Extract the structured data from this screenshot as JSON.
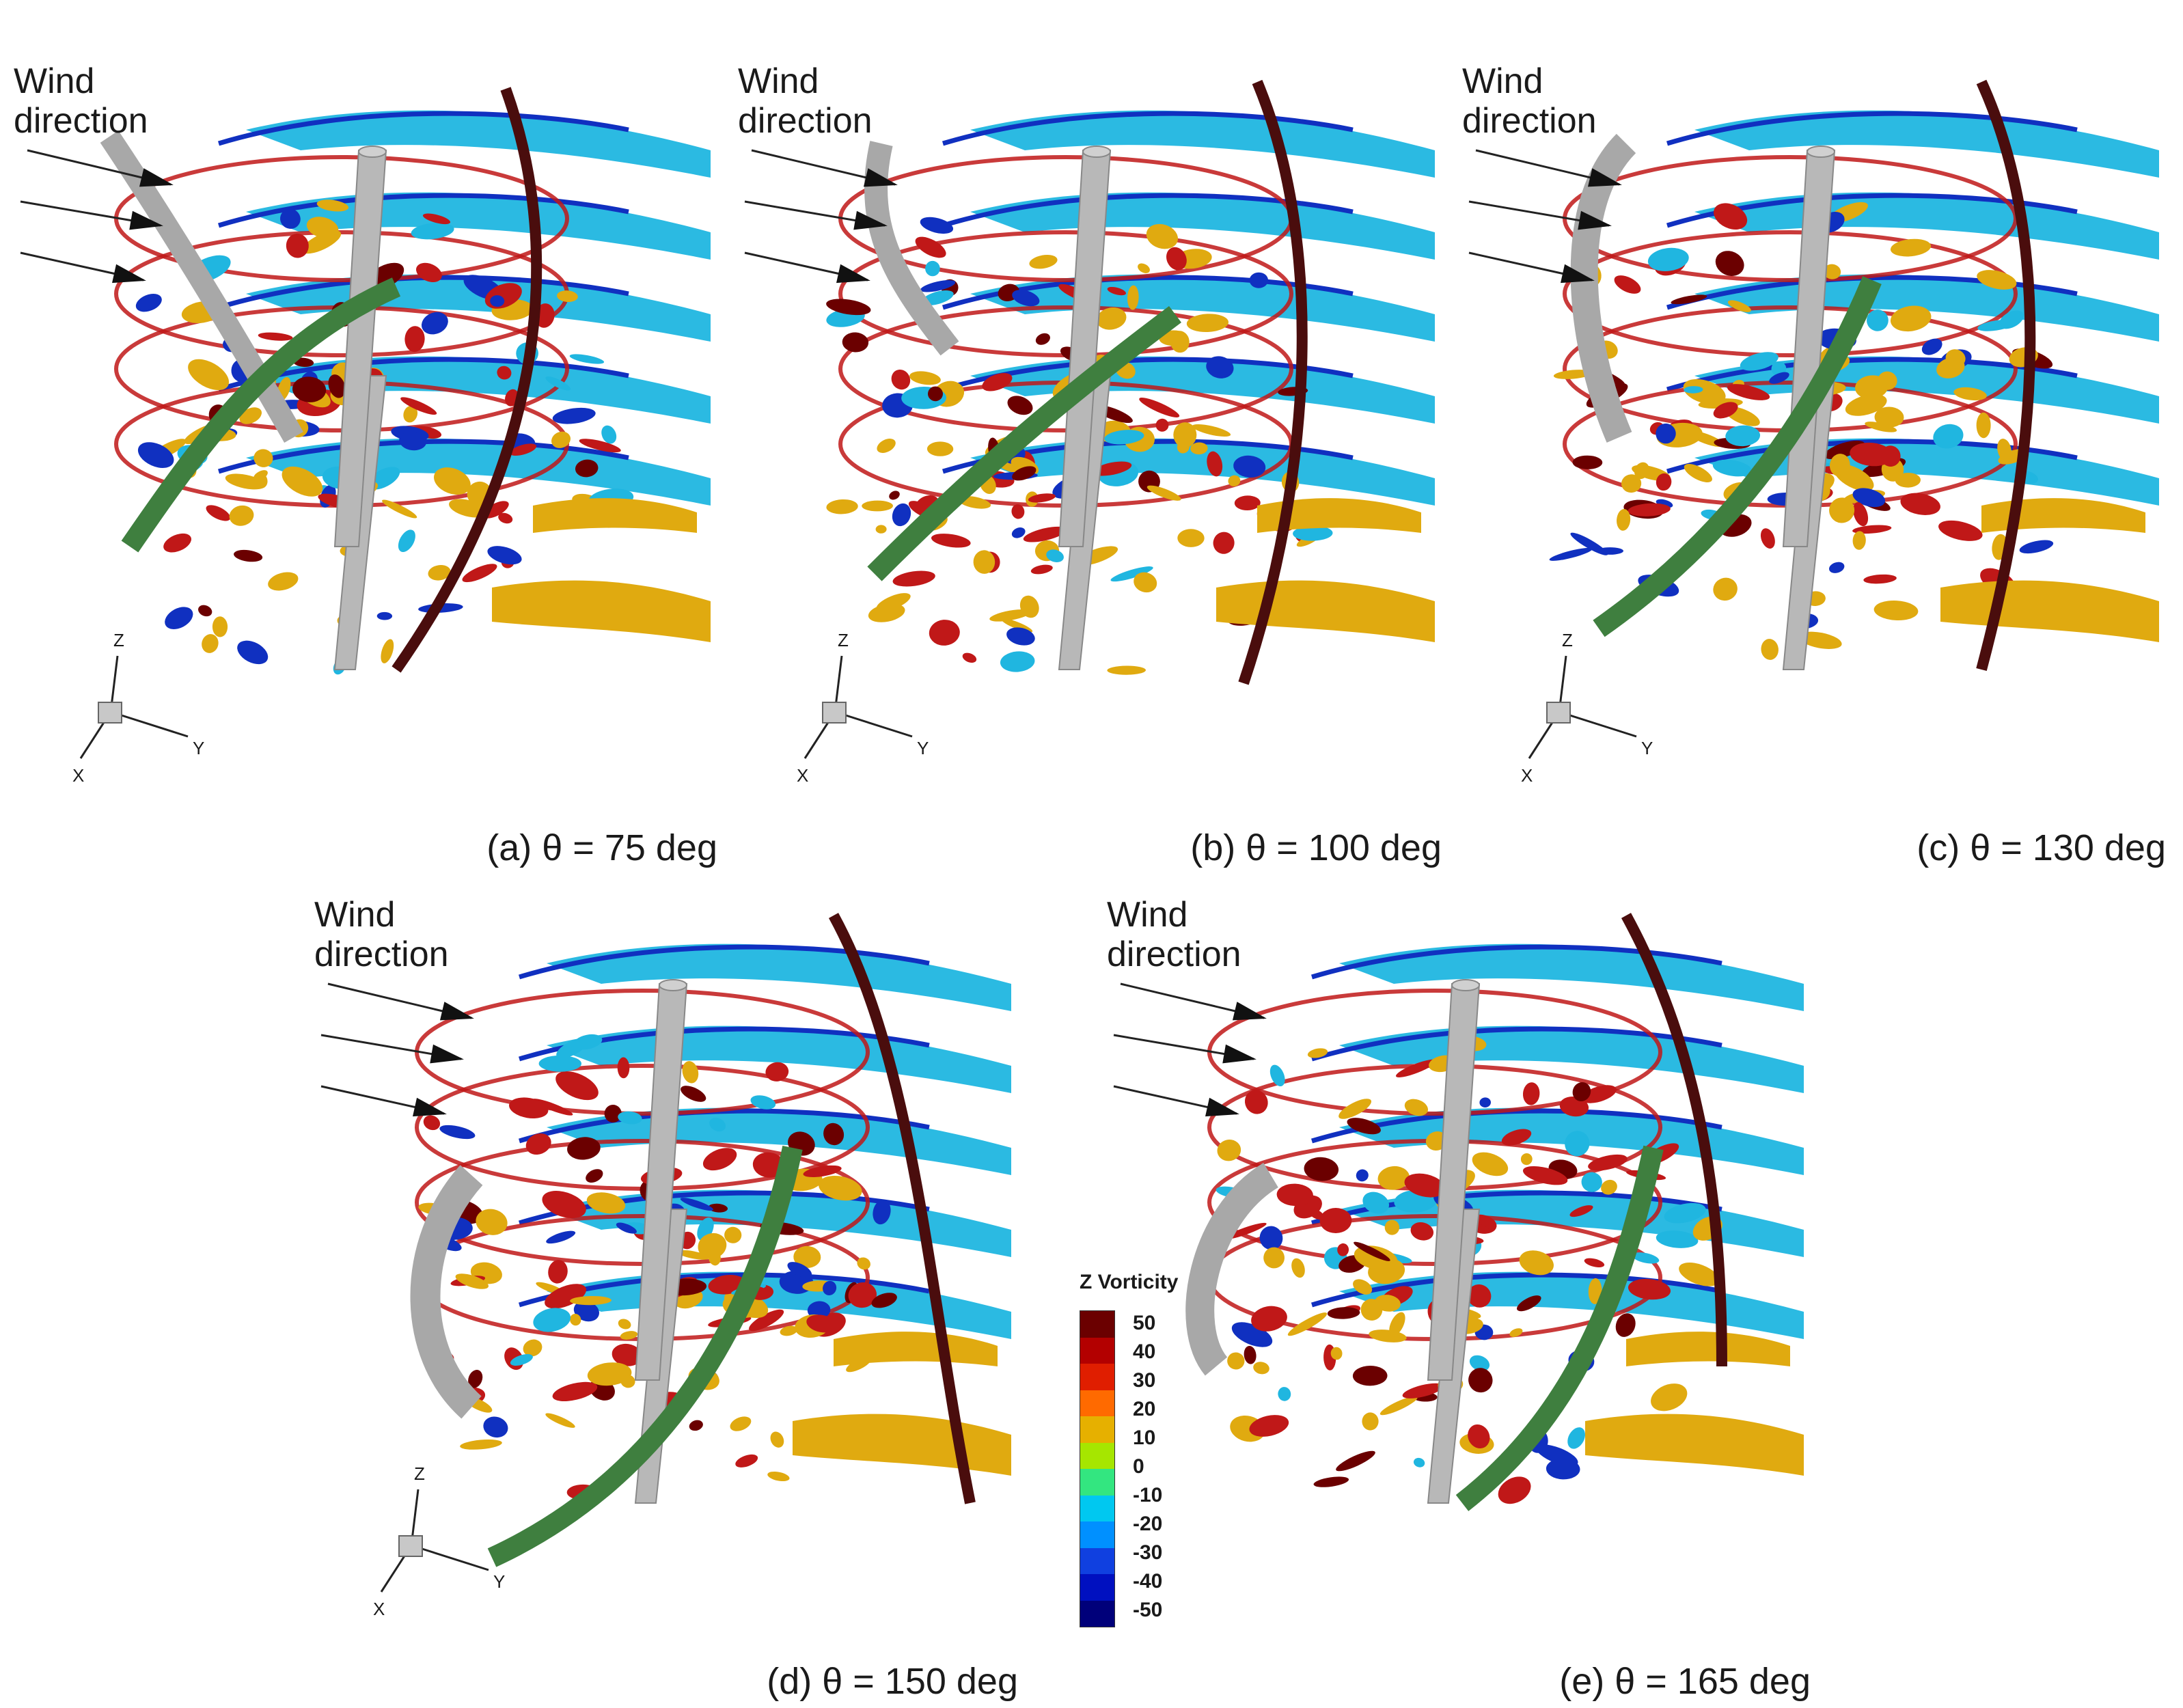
{
  "panels": [
    {
      "wind_label_line1": "Wind",
      "wind_label_line2": "direction",
      "caption": "(a) θ = 75 deg",
      "axis": {
        "z": "Z",
        "y": "Y",
        "x": "X"
      }
    },
    {
      "wind_label_line1": "Wind",
      "wind_label_line2": "direction",
      "caption": "(b) θ = 100 deg",
      "axis": {
        "z": "Z",
        "y": "Y",
        "x": "X"
      }
    },
    {
      "wind_label_line1": "Wind",
      "wind_label_line2": "direction",
      "caption": "(c) θ = 130 deg",
      "axis": {
        "z": "Z",
        "y": "Y",
        "x": "X"
      }
    },
    {
      "wind_label_line1": "Wind",
      "wind_label_line2": "direction",
      "caption": "(d) θ = 150 deg",
      "axis": {
        "z": "Z",
        "y": "Y",
        "x": "X"
      }
    },
    {
      "wind_label_line1": "Wind",
      "wind_label_line2": "direction",
      "caption": "(e) θ = 165 deg",
      "axis": {}
    }
  ],
  "legend": {
    "title": "Z  Vorticity",
    "ticks": [
      "50",
      "40",
      "30",
      "20",
      "10",
      "0",
      "-10",
      "-20",
      "-30",
      "-40",
      "-50"
    ],
    "colors": [
      "#6b0000",
      "#b30000",
      "#e01e00",
      "#ff6a00",
      "#e6b000",
      "#a6e600",
      "#33e680",
      "#00c8f0",
      "#0090ff",
      "#1040e0",
      "#0010c0",
      "#00007a"
    ]
  },
  "colors": {
    "blade_gray": "#a8a8a8",
    "blade_green": "#3f7f3f",
    "blade_dark": "#4a0d0d",
    "tower": "#b8b8b8",
    "cyan": "#20b6e0",
    "blue": "#1030c0",
    "red": "#c01818",
    "gold": "#e0aa10"
  }
}
